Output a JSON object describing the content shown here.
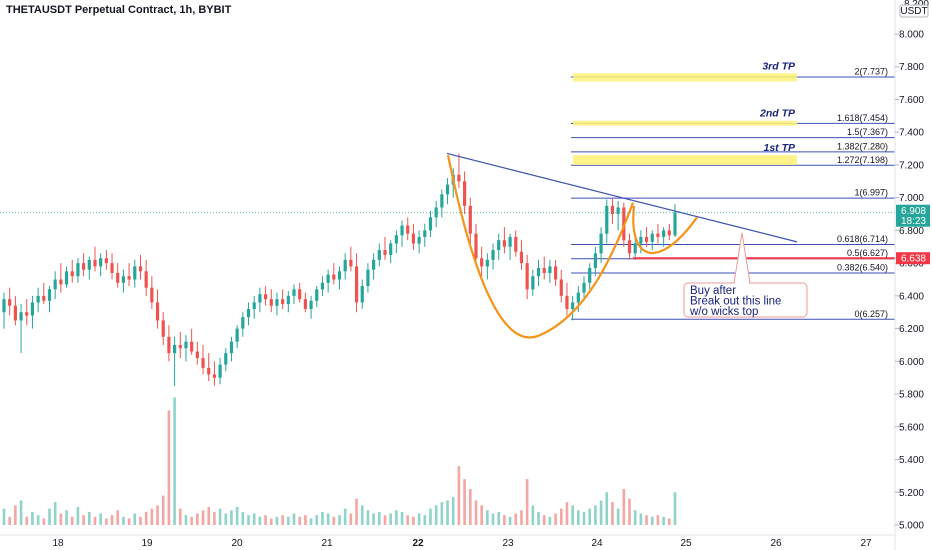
{
  "header": {
    "title": "THETAUSDT Perpetual Contract, 1h, BYBIT",
    "currency": "USDT"
  },
  "chart_data": {
    "type": "candlestick",
    "title": "THETAUSDT Perpetual Contract, 1h, BYBIT",
    "y_axis": {
      "ticks": [
        "8.000",
        "7.800",
        "7.600",
        "7.400",
        "7.200",
        "7.000",
        "6.800",
        "6.600",
        "6.400",
        "6.200",
        "6.000",
        "5.800",
        "5.600",
        "5.400",
        "5.200",
        "5.000"
      ],
      "top_partial": "8.200",
      "ylim": [
        4.98,
        8.2
      ]
    },
    "x_axis": {
      "ticks": [
        "18",
        "19",
        "20",
        "21",
        "22",
        "23",
        "24",
        "25",
        "26",
        "27"
      ]
    },
    "price_labels": {
      "last_price": "6.908",
      "countdown": "18:23",
      "marked_price": "6.638"
    },
    "fib_levels": [
      {
        "label": "2(7.737)",
        "value": 7.737
      },
      {
        "label": "1.618(7.454)",
        "value": 7.454
      },
      {
        "label": "1.5(7.367)",
        "value": 7.367
      },
      {
        "label": "1.382(7.280)",
        "value": 7.28
      },
      {
        "label": "1.272(7.198)",
        "value": 7.198
      },
      {
        "label": "1(6.997)",
        "value": 6.997
      },
      {
        "label": "0.618(6.714)",
        "value": 6.714
      },
      {
        "label": "0.5(6.627)",
        "value": 6.627
      },
      {
        "label": "0.382(6.540)",
        "value": 6.54
      },
      {
        "label": "0(6.257)",
        "value": 6.257
      }
    ],
    "targets": [
      {
        "label": "3rd TP",
        "low": 7.71,
        "high": 7.76
      },
      {
        "label": "2nd TP",
        "low": 7.44,
        "high": 7.47
      },
      {
        "label": "1st TP",
        "low": 7.2,
        "high": 7.26
      }
    ],
    "annotation": {
      "lines": [
        "Buy after",
        "Break out this line",
        "w/o wicks top"
      ]
    },
    "colors": {
      "up": "#26a69a",
      "down": "#ef5350",
      "fib": "#3f51b5",
      "tp_fill": "#fff176",
      "cup": "#f7931a",
      "trendline": "#3f51b5",
      "marked": "#f23645"
    },
    "candles": [
      {
        "o": 6.3,
        "h": 6.42,
        "l": 6.2,
        "c": 6.38,
        "v": 5.1
      },
      {
        "o": 6.38,
        "h": 6.45,
        "l": 6.28,
        "c": 6.34,
        "v": 5.05
      },
      {
        "o": 6.34,
        "h": 6.4,
        "l": 6.22,
        "c": 6.25,
        "v": 5.12
      },
      {
        "o": 6.25,
        "h": 6.35,
        "l": 6.05,
        "c": 6.3,
        "v": 5.15
      },
      {
        "o": 6.3,
        "h": 6.38,
        "l": 6.22,
        "c": 6.28,
        "v": 5.05
      },
      {
        "o": 6.28,
        "h": 6.4,
        "l": 6.2,
        "c": 6.36,
        "v": 5.08
      },
      {
        "o": 6.36,
        "h": 6.45,
        "l": 6.3,
        "c": 6.4,
        "v": 5.06
      },
      {
        "o": 6.4,
        "h": 6.48,
        "l": 6.35,
        "c": 6.37,
        "v": 5.04
      },
      {
        "o": 6.37,
        "h": 6.46,
        "l": 6.3,
        "c": 6.44,
        "v": 5.1
      },
      {
        "o": 6.44,
        "h": 6.55,
        "l": 6.38,
        "c": 6.5,
        "v": 5.14
      },
      {
        "o": 6.5,
        "h": 6.6,
        "l": 6.42,
        "c": 6.47,
        "v": 5.07
      },
      {
        "o": 6.47,
        "h": 6.58,
        "l": 6.45,
        "c": 6.55,
        "v": 5.09
      },
      {
        "o": 6.55,
        "h": 6.62,
        "l": 6.48,
        "c": 6.52,
        "v": 5.05
      },
      {
        "o": 6.52,
        "h": 6.63,
        "l": 6.48,
        "c": 6.6,
        "v": 5.11
      },
      {
        "o": 6.6,
        "h": 6.66,
        "l": 6.52,
        "c": 6.56,
        "v": 5.06
      },
      {
        "o": 6.56,
        "h": 6.64,
        "l": 6.5,
        "c": 6.62,
        "v": 5.08
      },
      {
        "o": 6.62,
        "h": 6.7,
        "l": 6.55,
        "c": 6.58,
        "v": 5.05
      },
      {
        "o": 6.58,
        "h": 6.66,
        "l": 6.52,
        "c": 6.63,
        "v": 5.07
      },
      {
        "o": 6.63,
        "h": 6.68,
        "l": 6.56,
        "c": 6.6,
        "v": 5.04
      },
      {
        "o": 6.6,
        "h": 6.66,
        "l": 6.5,
        "c": 6.54,
        "v": 5.06
      },
      {
        "o": 6.54,
        "h": 6.6,
        "l": 6.45,
        "c": 6.48,
        "v": 5.09
      },
      {
        "o": 6.48,
        "h": 6.56,
        "l": 6.42,
        "c": 6.52,
        "v": 5.05
      },
      {
        "o": 6.52,
        "h": 6.6,
        "l": 6.46,
        "c": 6.5,
        "v": 5.04
      },
      {
        "o": 6.5,
        "h": 6.62,
        "l": 6.45,
        "c": 6.58,
        "v": 5.07
      },
      {
        "o": 6.58,
        "h": 6.65,
        "l": 6.5,
        "c": 6.55,
        "v": 5.05
      },
      {
        "o": 6.55,
        "h": 6.62,
        "l": 6.4,
        "c": 6.45,
        "v": 5.08
      },
      {
        "o": 6.45,
        "h": 6.52,
        "l": 6.32,
        "c": 6.36,
        "v": 5.1
      },
      {
        "o": 6.36,
        "h": 6.44,
        "l": 6.2,
        "c": 6.25,
        "v": 5.12
      },
      {
        "o": 6.25,
        "h": 6.3,
        "l": 6.1,
        "c": 6.15,
        "v": 5.18
      },
      {
        "o": 6.15,
        "h": 6.22,
        "l": 6.0,
        "c": 6.05,
        "v": 5.7
      },
      {
        "o": 6.05,
        "h": 6.15,
        "l": 5.85,
        "c": 6.1,
        "v": 5.78
      },
      {
        "o": 6.1,
        "h": 6.18,
        "l": 6.02,
        "c": 6.08,
        "v": 5.1
      },
      {
        "o": 6.08,
        "h": 6.16,
        "l": 6.0,
        "c": 6.12,
        "v": 5.06
      },
      {
        "o": 6.12,
        "h": 6.2,
        "l": 6.04,
        "c": 6.06,
        "v": 5.05
      },
      {
        "o": 6.06,
        "h": 6.12,
        "l": 5.98,
        "c": 6.02,
        "v": 5.07
      },
      {
        "o": 6.02,
        "h": 6.1,
        "l": 5.92,
        "c": 5.96,
        "v": 5.09
      },
      {
        "o": 5.96,
        "h": 6.05,
        "l": 5.88,
        "c": 5.92,
        "v": 5.11
      },
      {
        "o": 5.92,
        "h": 6.0,
        "l": 5.85,
        "c": 5.9,
        "v": 5.08
      },
      {
        "o": 5.9,
        "h": 6.02,
        "l": 5.86,
        "c": 5.98,
        "v": 5.1
      },
      {
        "o": 5.98,
        "h": 6.08,
        "l": 5.94,
        "c": 6.05,
        "v": 5.07
      },
      {
        "o": 6.05,
        "h": 6.15,
        "l": 6.0,
        "c": 6.12,
        "v": 5.09
      },
      {
        "o": 6.12,
        "h": 6.22,
        "l": 6.08,
        "c": 6.2,
        "v": 5.11
      },
      {
        "o": 6.2,
        "h": 6.3,
        "l": 6.15,
        "c": 6.27,
        "v": 5.08
      },
      {
        "o": 6.27,
        "h": 6.36,
        "l": 6.22,
        "c": 6.32,
        "v": 5.06
      },
      {
        "o": 6.32,
        "h": 6.4,
        "l": 6.26,
        "c": 6.36,
        "v": 5.07
      },
      {
        "o": 6.36,
        "h": 6.45,
        "l": 6.3,
        "c": 6.41,
        "v": 5.05
      },
      {
        "o": 6.41,
        "h": 6.46,
        "l": 6.34,
        "c": 6.38,
        "v": 5.06
      },
      {
        "o": 6.38,
        "h": 6.44,
        "l": 6.3,
        "c": 6.34,
        "v": 5.04
      },
      {
        "o": 6.34,
        "h": 6.42,
        "l": 6.28,
        "c": 6.38,
        "v": 5.05
      },
      {
        "o": 6.38,
        "h": 6.44,
        "l": 6.32,
        "c": 6.35,
        "v": 5.06
      },
      {
        "o": 6.35,
        "h": 6.43,
        "l": 6.3,
        "c": 6.4,
        "v": 5.05
      },
      {
        "o": 6.4,
        "h": 6.47,
        "l": 6.35,
        "c": 6.44,
        "v": 5.07
      },
      {
        "o": 6.44,
        "h": 6.48,
        "l": 6.36,
        "c": 6.38,
        "v": 5.05
      },
      {
        "o": 6.38,
        "h": 6.42,
        "l": 6.3,
        "c": 6.32,
        "v": 5.06
      },
      {
        "o": 6.32,
        "h": 6.4,
        "l": 6.26,
        "c": 6.37,
        "v": 5.04
      },
      {
        "o": 6.37,
        "h": 6.46,
        "l": 6.33,
        "c": 6.44,
        "v": 5.06
      },
      {
        "o": 6.44,
        "h": 6.52,
        "l": 6.4,
        "c": 6.48,
        "v": 5.08
      },
      {
        "o": 6.48,
        "h": 6.56,
        "l": 6.42,
        "c": 6.53,
        "v": 5.07
      },
      {
        "o": 6.53,
        "h": 6.6,
        "l": 6.47,
        "c": 6.5,
        "v": 5.05
      },
      {
        "o": 6.5,
        "h": 6.58,
        "l": 6.44,
        "c": 6.55,
        "v": 5.06
      },
      {
        "o": 6.55,
        "h": 6.66,
        "l": 6.5,
        "c": 6.62,
        "v": 5.1
      },
      {
        "o": 6.62,
        "h": 6.7,
        "l": 6.55,
        "c": 6.58,
        "v": 5.07
      },
      {
        "o": 6.58,
        "h": 6.66,
        "l": 6.3,
        "c": 6.36,
        "v": 5.16
      },
      {
        "o": 6.36,
        "h": 6.5,
        "l": 6.32,
        "c": 6.46,
        "v": 5.12
      },
      {
        "o": 6.46,
        "h": 6.6,
        "l": 6.42,
        "c": 6.56,
        "v": 5.09
      },
      {
        "o": 6.56,
        "h": 6.66,
        "l": 6.5,
        "c": 6.62,
        "v": 5.07
      },
      {
        "o": 6.62,
        "h": 6.72,
        "l": 6.58,
        "c": 6.68,
        "v": 5.08
      },
      {
        "o": 6.68,
        "h": 6.76,
        "l": 6.62,
        "c": 6.65,
        "v": 5.06
      },
      {
        "o": 6.65,
        "h": 6.74,
        "l": 6.6,
        "c": 6.72,
        "v": 5.07
      },
      {
        "o": 6.72,
        "h": 6.8,
        "l": 6.66,
        "c": 6.77,
        "v": 5.09
      },
      {
        "o": 6.77,
        "h": 6.86,
        "l": 6.7,
        "c": 6.83,
        "v": 5.08
      },
      {
        "o": 6.83,
        "h": 6.88,
        "l": 6.74,
        "c": 6.78,
        "v": 5.06
      },
      {
        "o": 6.78,
        "h": 6.84,
        "l": 6.68,
        "c": 6.72,
        "v": 5.05
      },
      {
        "o": 6.72,
        "h": 6.8,
        "l": 6.66,
        "c": 6.76,
        "v": 5.07
      },
      {
        "o": 6.76,
        "h": 6.84,
        "l": 6.7,
        "c": 6.8,
        "v": 5.06
      },
      {
        "o": 6.8,
        "h": 6.92,
        "l": 6.76,
        "c": 6.88,
        "v": 5.1
      },
      {
        "o": 6.88,
        "h": 6.98,
        "l": 6.82,
        "c": 6.94,
        "v": 5.12
      },
      {
        "o": 6.94,
        "h": 7.05,
        "l": 6.88,
        "c": 7.02,
        "v": 5.14
      },
      {
        "o": 7.02,
        "h": 7.12,
        "l": 6.96,
        "c": 7.08,
        "v": 5.15
      },
      {
        "o": 7.08,
        "h": 7.18,
        "l": 7.0,
        "c": 7.14,
        "v": 5.17
      },
      {
        "o": 7.14,
        "h": 7.27,
        "l": 7.06,
        "c": 7.1,
        "v": 5.36
      },
      {
        "o": 7.1,
        "h": 7.16,
        "l": 6.9,
        "c": 6.95,
        "v": 5.28
      },
      {
        "o": 6.95,
        "h": 7.0,
        "l": 6.72,
        "c": 6.78,
        "v": 5.22
      },
      {
        "o": 6.78,
        "h": 6.84,
        "l": 6.58,
        "c": 6.63,
        "v": 5.15
      },
      {
        "o": 6.63,
        "h": 6.7,
        "l": 6.52,
        "c": 6.58,
        "v": 5.12
      },
      {
        "o": 6.58,
        "h": 6.66,
        "l": 6.5,
        "c": 6.62,
        "v": 5.09
      },
      {
        "o": 6.62,
        "h": 6.72,
        "l": 6.56,
        "c": 6.68,
        "v": 5.07
      },
      {
        "o": 6.68,
        "h": 6.78,
        "l": 6.62,
        "c": 6.74,
        "v": 5.08
      },
      {
        "o": 6.74,
        "h": 6.82,
        "l": 6.66,
        "c": 6.7,
        "v": 5.06
      },
      {
        "o": 6.7,
        "h": 6.78,
        "l": 6.62,
        "c": 6.76,
        "v": 5.05
      },
      {
        "o": 6.76,
        "h": 6.8,
        "l": 6.64,
        "c": 6.67,
        "v": 5.07
      },
      {
        "o": 6.67,
        "h": 6.74,
        "l": 6.56,
        "c": 6.6,
        "v": 5.09
      },
      {
        "o": 6.6,
        "h": 6.65,
        "l": 6.38,
        "c": 6.44,
        "v": 5.28
      },
      {
        "o": 6.44,
        "h": 6.56,
        "l": 6.4,
        "c": 6.52,
        "v": 5.12
      },
      {
        "o": 6.52,
        "h": 6.62,
        "l": 6.46,
        "c": 6.57,
        "v": 5.08
      },
      {
        "o": 6.57,
        "h": 6.64,
        "l": 6.5,
        "c": 6.54,
        "v": 5.06
      },
      {
        "o": 6.54,
        "h": 6.62,
        "l": 6.48,
        "c": 6.58,
        "v": 5.05
      },
      {
        "o": 6.58,
        "h": 6.62,
        "l": 6.46,
        "c": 6.5,
        "v": 5.07
      },
      {
        "o": 6.5,
        "h": 6.56,
        "l": 6.36,
        "c": 6.4,
        "v": 5.1
      },
      {
        "o": 6.4,
        "h": 6.48,
        "l": 6.28,
        "c": 6.32,
        "v": 5.14
      },
      {
        "o": 6.32,
        "h": 6.4,
        "l": 6.25,
        "c": 6.36,
        "v": 5.12
      },
      {
        "o": 6.36,
        "h": 6.46,
        "l": 6.3,
        "c": 6.42,
        "v": 5.09
      },
      {
        "o": 6.42,
        "h": 6.52,
        "l": 6.38,
        "c": 6.48,
        "v": 5.08
      },
      {
        "o": 6.48,
        "h": 6.6,
        "l": 6.44,
        "c": 6.57,
        "v": 5.1
      },
      {
        "o": 6.57,
        "h": 6.7,
        "l": 6.52,
        "c": 6.66,
        "v": 5.12
      },
      {
        "o": 6.66,
        "h": 6.82,
        "l": 6.6,
        "c": 6.78,
        "v": 5.15
      },
      {
        "o": 6.78,
        "h": 6.99,
        "l": 6.72,
        "c": 6.95,
        "v": 5.2
      },
      {
        "o": 6.95,
        "h": 7.0,
        "l": 6.84,
        "c": 6.9,
        "v": 5.14
      },
      {
        "o": 6.9,
        "h": 6.98,
        "l": 6.8,
        "c": 6.94,
        "v": 5.1
      },
      {
        "o": 6.94,
        "h": 6.97,
        "l": 6.7,
        "c": 6.74,
        "v": 5.22
      },
      {
        "o": 6.74,
        "h": 6.78,
        "l": 6.62,
        "c": 6.66,
        "v": 5.16
      },
      {
        "o": 6.66,
        "h": 6.76,
        "l": 6.62,
        "c": 6.72,
        "v": 5.09
      },
      {
        "o": 6.72,
        "h": 6.8,
        "l": 6.66,
        "c": 6.76,
        "v": 5.07
      },
      {
        "o": 6.76,
        "h": 6.82,
        "l": 6.7,
        "c": 6.73,
        "v": 5.06
      },
      {
        "o": 6.73,
        "h": 6.8,
        "l": 6.68,
        "c": 6.78,
        "v": 5.05
      },
      {
        "o": 6.78,
        "h": 6.84,
        "l": 6.72,
        "c": 6.76,
        "v": 5.06
      },
      {
        "o": 6.76,
        "h": 6.82,
        "l": 6.7,
        "c": 6.8,
        "v": 5.05
      },
      {
        "o": 6.8,
        "h": 6.84,
        "l": 6.74,
        "c": 6.77,
        "v": 5.04
      },
      {
        "o": 6.77,
        "h": 6.96,
        "l": 6.76,
        "c": 6.91,
        "v": 5.2
      }
    ]
  }
}
